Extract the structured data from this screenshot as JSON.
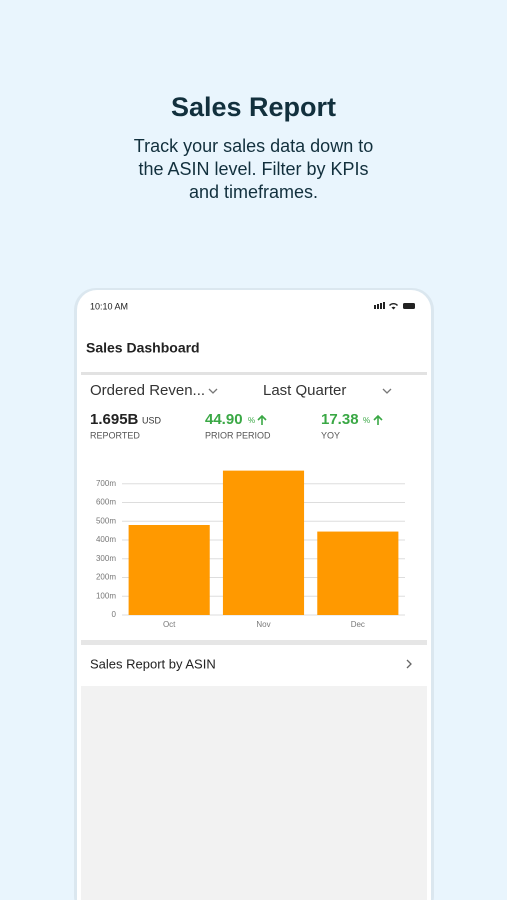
{
  "header": {
    "title": "Sales Report",
    "subtitle": [
      "Track your sales data down to",
      "the ASIN level. Filter by KPIs",
      "and timeframes."
    ]
  },
  "phone": {
    "status_time": "10:10 AM",
    "screen_title": "Sales Dashboard",
    "filters": [
      "Ordered Reven...",
      "Last Quarter"
    ],
    "kpis": [
      {
        "value": "1.695B",
        "unit": "USD",
        "label": "REPORTED"
      },
      {
        "value": "44.90",
        "unit": "%",
        "label": "PRIOR PERIOD"
      },
      {
        "value": "17.38",
        "unit": "%",
        "label": "YOY"
      }
    ],
    "link": "Sales Report by ASIN"
  },
  "chart_data": {
    "type": "bar",
    "categories": [
      "Oct",
      "Nov",
      "Dec"
    ],
    "values": [
      480,
      770,
      445
    ],
    "color": "#ff9900",
    "ylim": [
      0,
      800
    ],
    "yticks": [
      0,
      {
        "value": 100,
        "label": "100m"
      },
      {
        "value": 200,
        "label": "200m"
      },
      {
        "value": 300,
        "label": "300m"
      },
      {
        "value": 400,
        "label": "400m"
      },
      {
        "value": 500,
        "label": "500m"
      },
      {
        "value": 600,
        "label": "600m"
      },
      {
        "value": 700,
        "label": "700m"
      }
    ],
    "grid": true
  }
}
